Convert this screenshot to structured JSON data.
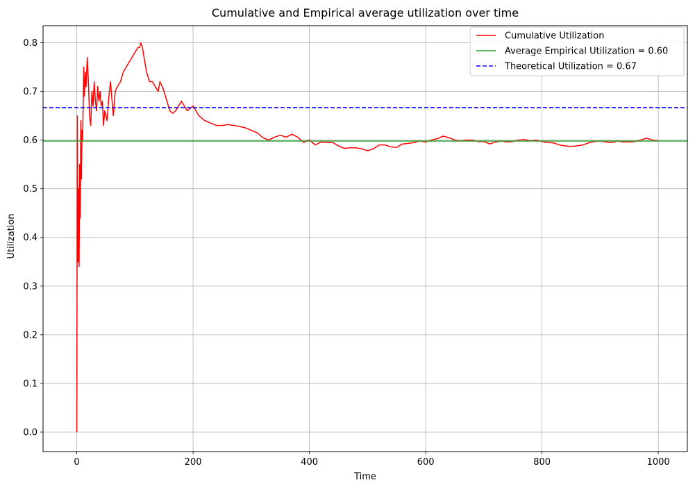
{
  "chart_data": {
    "type": "line",
    "title": "Cumulative and Empirical average utilization over time",
    "xlabel": "Time",
    "ylabel": "Utilization",
    "xlim": [
      -58,
      1050
    ],
    "ylim": [
      -0.04,
      0.835
    ],
    "xticks": [
      0,
      200,
      400,
      600,
      800,
      1000
    ],
    "xtick_labels": [
      "0",
      "200",
      "400",
      "600",
      "800",
      "1000"
    ],
    "yticks": [
      0.0,
      0.1,
      0.2,
      0.3,
      0.4,
      0.5,
      0.6,
      0.7,
      0.8
    ],
    "ytick_labels": [
      "0.0",
      "0.1",
      "0.2",
      "0.3",
      "0.4",
      "0.5",
      "0.6",
      "0.7",
      "0.8"
    ],
    "grid": true,
    "legend_position": "top-right",
    "series": [
      {
        "name": "Cumulative Utilization",
        "color": "#ff0000",
        "style": "solid",
        "x": [
          0,
          1,
          2,
          3,
          4,
          5,
          6,
          7,
          8,
          9,
          10,
          12,
          13,
          15,
          16,
          18,
          20,
          22,
          24,
          26,
          28,
          30,
          32,
          34,
          36,
          38,
          40,
          42,
          44,
          46,
          48,
          50,
          52,
          54,
          56,
          58,
          60,
          63,
          66,
          70,
          75,
          80,
          85,
          90,
          95,
          100,
          105,
          108,
          110,
          113,
          117,
          120,
          125,
          130,
          135,
          140,
          143,
          147,
          150,
          155,
          160,
          165,
          170,
          175,
          180,
          185,
          190,
          195,
          200,
          205,
          210,
          215,
          220,
          230,
          240,
          250,
          260,
          270,
          280,
          290,
          300,
          310,
          320,
          330,
          340,
          350,
          360,
          370,
          380,
          390,
          400,
          410,
          420,
          430,
          440,
          450,
          460,
          470,
          480,
          490,
          500,
          510,
          520,
          530,
          540,
          550,
          560,
          570,
          580,
          590,
          600,
          610,
          620,
          630,
          640,
          650,
          660,
          670,
          680,
          690,
          700,
          710,
          720,
          730,
          740,
          750,
          760,
          770,
          780,
          790,
          800,
          810,
          820,
          830,
          840,
          850,
          860,
          870,
          880,
          890,
          900,
          910,
          920,
          930,
          940,
          950,
          960,
          970,
          980,
          990,
          1000
        ],
        "values": [
          0.0,
          0.65,
          0.35,
          0.5,
          0.34,
          0.55,
          0.44,
          0.64,
          0.52,
          0.62,
          0.6,
          0.75,
          0.69,
          0.74,
          0.71,
          0.77,
          0.72,
          0.65,
          0.63,
          0.7,
          0.67,
          0.72,
          0.68,
          0.66,
          0.71,
          0.68,
          0.7,
          0.67,
          0.68,
          0.63,
          0.66,
          0.65,
          0.64,
          0.67,
          0.7,
          0.72,
          0.69,
          0.65,
          0.7,
          0.71,
          0.72,
          0.74,
          0.75,
          0.76,
          0.77,
          0.78,
          0.79,
          0.79,
          0.8,
          0.79,
          0.76,
          0.74,
          0.72,
          0.72,
          0.71,
          0.7,
          0.72,
          0.71,
          0.7,
          0.68,
          0.66,
          0.655,
          0.66,
          0.67,
          0.68,
          0.67,
          0.66,
          0.665,
          0.67,
          0.66,
          0.65,
          0.645,
          0.64,
          0.635,
          0.63,
          0.63,
          0.632,
          0.63,
          0.628,
          0.625,
          0.62,
          0.615,
          0.605,
          0.6,
          0.606,
          0.61,
          0.606,
          0.612,
          0.606,
          0.595,
          0.6,
          0.59,
          0.596,
          0.595,
          0.595,
          0.588,
          0.583,
          0.584,
          0.584,
          0.582,
          0.578,
          0.582,
          0.59,
          0.59,
          0.586,
          0.585,
          0.592,
          0.593,
          0.595,
          0.598,
          0.596,
          0.6,
          0.603,
          0.608,
          0.605,
          0.6,
          0.598,
          0.6,
          0.6,
          0.597,
          0.597,
          0.592,
          0.596,
          0.598,
          0.596,
          0.597,
          0.6,
          0.601,
          0.598,
          0.6,
          0.597,
          0.595,
          0.594,
          0.59,
          0.588,
          0.587,
          0.588,
          0.59,
          0.594,
          0.597,
          0.598,
          0.596,
          0.595,
          0.598,
          0.596,
          0.596,
          0.597,
          0.6,
          0.604,
          0.6,
          0.598
        ]
      },
      {
        "name": "Average Empirical Utilization = 0.60",
        "color": "#2ca02c",
        "style": "solid",
        "constant": 0.598
      },
      {
        "name": "Theoretical Utilization = 0.67",
        "color": "#0000ff",
        "style": "dashed",
        "constant": 0.6667
      }
    ]
  }
}
